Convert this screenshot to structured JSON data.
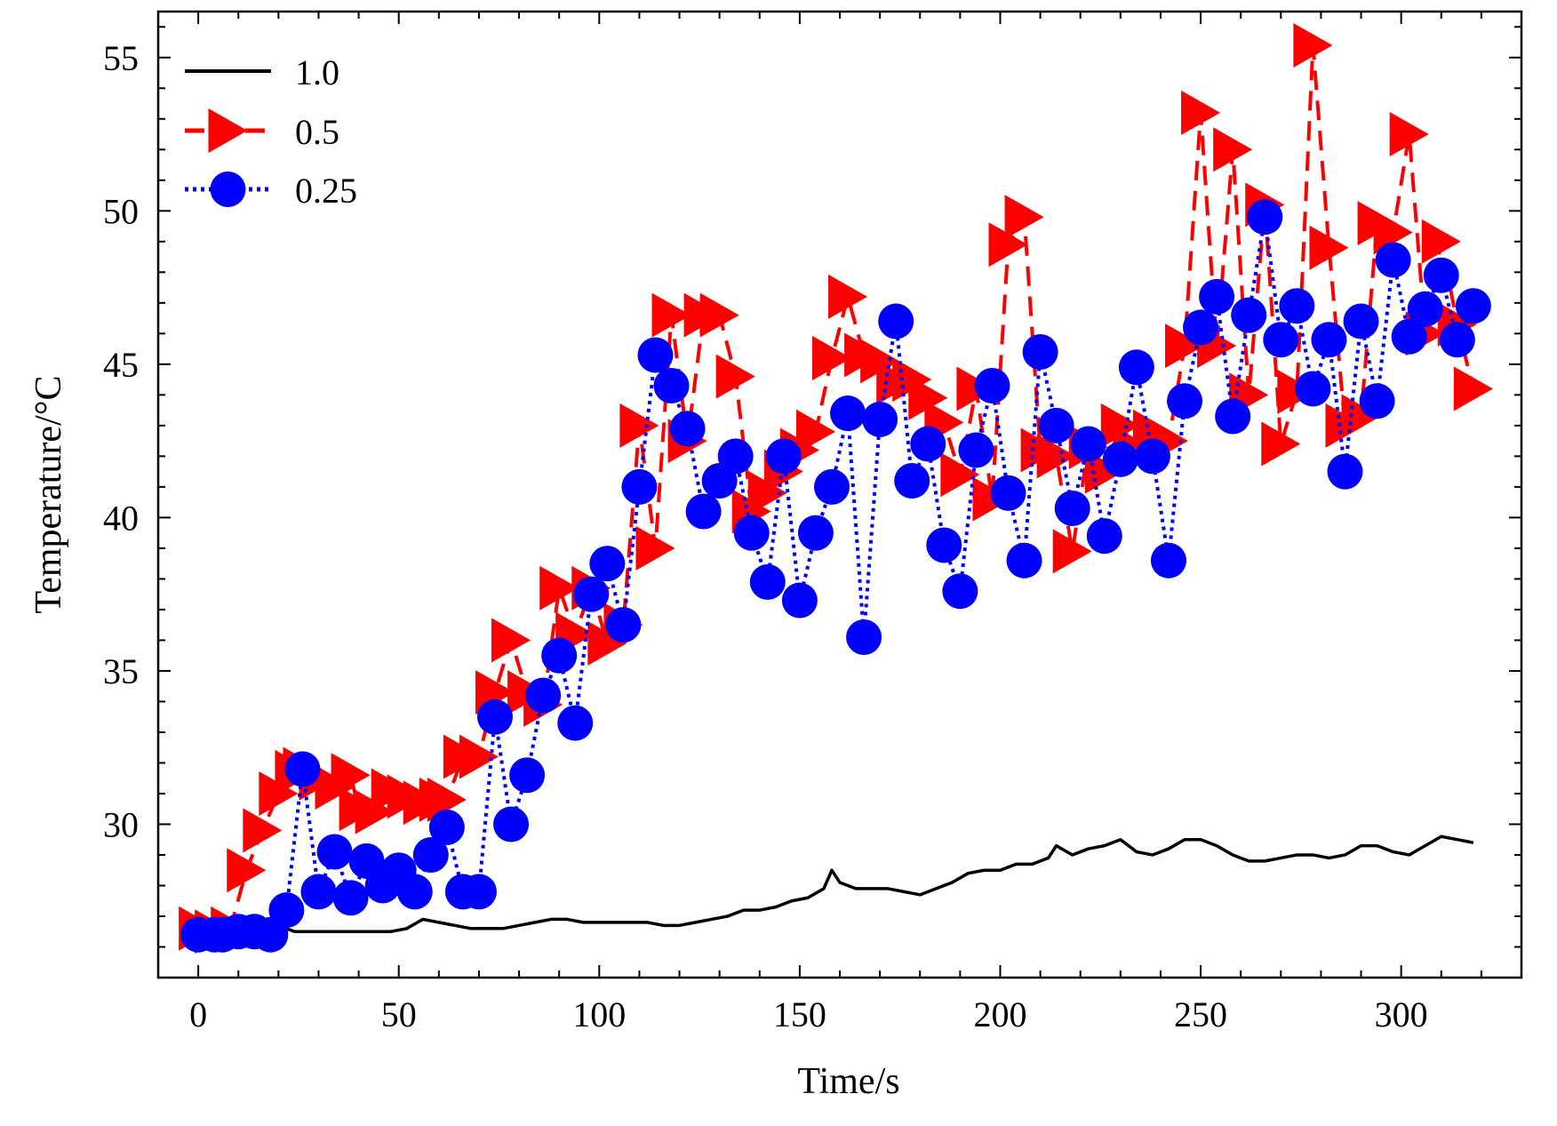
{
  "chart_data": {
    "type": "line",
    "title": "",
    "xlabel": "Time/s",
    "ylabel": "Temperature/°C",
    "xlim": [
      -10,
      330
    ],
    "ylim": [
      25,
      56.5
    ],
    "xticks": [
      0,
      50,
      100,
      150,
      200,
      250,
      300
    ],
    "yticks": [
      30,
      35,
      40,
      45,
      50,
      55
    ],
    "legend_position": "top-left",
    "series": [
      {
        "name": "1.0",
        "color": "#000000",
        "line": "solid",
        "marker": "none",
        "x": [
          0,
          4,
          8,
          12,
          16,
          20,
          24,
          28,
          32,
          36,
          40,
          44,
          48,
          52,
          56,
          60,
          64,
          68,
          72,
          76,
          80,
          84,
          88,
          92,
          96,
          100,
          104,
          108,
          112,
          116,
          120,
          124,
          128,
          132,
          136,
          140,
          144,
          148,
          152,
          156,
          158,
          160,
          164,
          168,
          172,
          176,
          180,
          184,
          188,
          192,
          196,
          200,
          204,
          208,
          212,
          214,
          218,
          222,
          226,
          230,
          234,
          238,
          242,
          246,
          250,
          254,
          258,
          262,
          266,
          270,
          274,
          278,
          282,
          286,
          290,
          294,
          298,
          302,
          306,
          310,
          314,
          318
        ],
        "values": [
          26.4,
          26.5,
          26.6,
          26.6,
          26.6,
          26.7,
          26.5,
          26.5,
          26.5,
          26.5,
          26.5,
          26.5,
          26.5,
          26.6,
          26.9,
          26.8,
          26.7,
          26.6,
          26.6,
          26.6,
          26.7,
          26.8,
          26.9,
          26.9,
          26.8,
          26.8,
          26.8,
          26.8,
          26.8,
          26.7,
          26.7,
          26.8,
          26.9,
          27.0,
          27.2,
          27.2,
          27.3,
          27.5,
          27.6,
          27.9,
          28.5,
          28.1,
          27.9,
          27.9,
          27.9,
          27.8,
          27.7,
          27.9,
          28.1,
          28.4,
          28.5,
          28.5,
          28.7,
          28.7,
          28.9,
          29.3,
          29.0,
          29.2,
          29.3,
          29.5,
          29.1,
          29.0,
          29.2,
          29.5,
          29.5,
          29.3,
          29.0,
          28.8,
          28.8,
          28.9,
          29.0,
          29.0,
          28.9,
          29.0,
          29.3,
          29.3,
          29.1,
          29.0,
          29.3,
          29.6,
          29.5,
          29.4
        ]
      },
      {
        "name": "0.5",
        "color": "#ff0000",
        "line": "dashed",
        "marker": "triangle-right",
        "x": [
          0,
          4,
          8,
          12,
          16,
          20,
          24,
          26,
          30,
          34,
          38,
          40,
          44,
          48,
          52,
          56,
          60,
          62,
          66,
          70,
          74,
          78,
          82,
          86,
          90,
          94,
          98,
          102,
          106,
          110,
          114,
          118,
          122,
          126,
          130,
          134,
          138,
          142,
          146,
          150,
          154,
          158,
          162,
          166,
          170,
          174,
          178,
          182,
          186,
          190,
          194,
          198,
          202,
          206,
          210,
          214,
          218,
          222,
          226,
          230,
          234,
          238,
          242,
          246,
          250,
          254,
          258,
          262,
          266,
          270,
          274,
          278,
          282,
          286,
          290,
          294,
          298,
          302,
          306,
          310,
          314,
          318
        ],
        "values": [
          26.6,
          26.5,
          26.6,
          28.5,
          29.8,
          31.0,
          31.7,
          31.8,
          31.5,
          31.2,
          31.6,
          30.5,
          30.4,
          31.1,
          30.9,
          30.7,
          30.8,
          30.8,
          32.2,
          32.2,
          34.3,
          36.0,
          34.3,
          33.9,
          37.7,
          36.2,
          37.7,
          35.9,
          36.5,
          43.0,
          39.0,
          46.6,
          42.5,
          46.6,
          46.6,
          44.6,
          40.2,
          40.8,
          41.5,
          42.2,
          42.8,
          45.2,
          47.2,
          45.3,
          45.1,
          44.4,
          44.5,
          43.9,
          43.1,
          41.4,
          44.2,
          40.6,
          48.9,
          49.8,
          42.2,
          42.0,
          38.9,
          42.3,
          41.5,
          43.0,
          42.2,
          42.8,
          42.5,
          45.6,
          53.2,
          45.6,
          52.0,
          44.0,
          50.2,
          42.4,
          44.1,
          55.4,
          48.8,
          43.0,
          43.3,
          49.6,
          49.3,
          52.5,
          46.0,
          49.0,
          46.3,
          44.2
        ]
      },
      {
        "name": "0.25",
        "color": "#0000ff",
        "line": "dotted",
        "marker": "circle",
        "x": [
          0,
          4,
          6,
          10,
          14,
          18,
          22,
          26,
          30,
          34,
          38,
          42,
          46,
          50,
          54,
          58,
          62,
          66,
          70,
          74,
          78,
          82,
          86,
          90,
          94,
          98,
          102,
          106,
          110,
          114,
          118,
          122,
          126,
          130,
          134,
          138,
          142,
          146,
          150,
          154,
          158,
          162,
          166,
          170,
          174,
          178,
          182,
          186,
          190,
          194,
          198,
          202,
          206,
          210,
          214,
          218,
          222,
          226,
          230,
          234,
          238,
          242,
          246,
          250,
          254,
          258,
          262,
          266,
          270,
          274,
          278,
          282,
          286,
          290,
          294,
          298,
          302,
          306,
          310,
          314,
          318
        ],
        "values": [
          26.4,
          26.4,
          26.4,
          26.5,
          26.5,
          26.4,
          27.2,
          31.8,
          27.8,
          29.1,
          27.6,
          28.8,
          28.0,
          28.5,
          27.8,
          29.0,
          29.9,
          27.8,
          27.8,
          33.5,
          30.0,
          31.6,
          34.2,
          35.5,
          33.3,
          37.5,
          38.5,
          36.5,
          41.0,
          45.3,
          44.3,
          42.9,
          40.2,
          41.2,
          42.0,
          39.5,
          37.9,
          42.0,
          37.3,
          39.5,
          41.0,
          43.4,
          36.1,
          43.2,
          46.4,
          41.2,
          42.4,
          39.1,
          37.6,
          42.2,
          44.3,
          40.8,
          38.6,
          45.4,
          43.0,
          40.3,
          42.4,
          39.4,
          41.9,
          44.9,
          42.0,
          38.6,
          43.8,
          46.2,
          47.2,
          43.3,
          46.6,
          49.8,
          45.8,
          46.9,
          44.2,
          45.8,
          41.5,
          46.4,
          43.8,
          48.4,
          45.9,
          46.8,
          47.9,
          45.8,
          46.9
        ]
      }
    ]
  }
}
